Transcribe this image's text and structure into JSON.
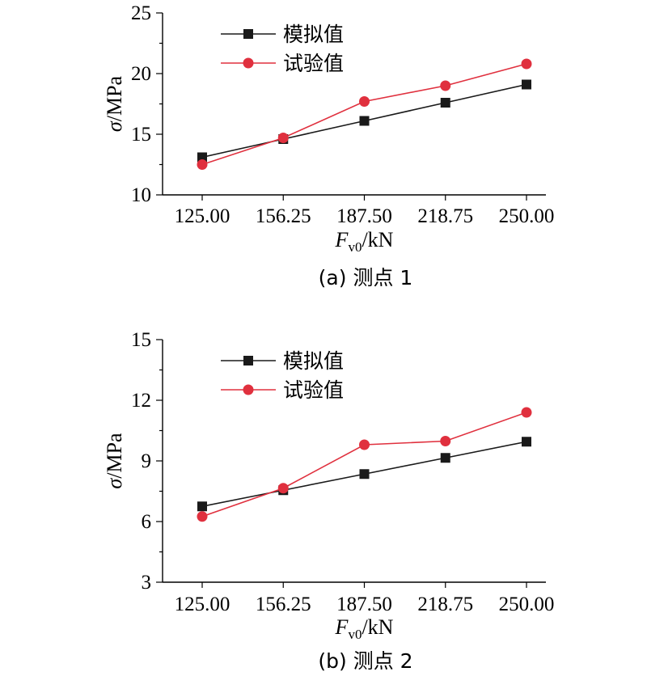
{
  "chart_data": [
    {
      "type": "line",
      "panel": "a",
      "caption": "(a) 测点 1",
      "xlabel_var": "F",
      "xlabel_sub": "v0",
      "xlabel_unit": "/kN",
      "ylabel_var": "σ",
      "ylabel_unit": "/MPa",
      "categories": [
        "125.00",
        "156.25",
        "187.50",
        "218.75",
        "250.00"
      ],
      "x": [
        125.0,
        156.25,
        187.5,
        218.75,
        250.0
      ],
      "ylim": [
        10,
        25
      ],
      "yticks": [
        "10",
        "15",
        "20",
        "25"
      ],
      "ytick_values": [
        10,
        15,
        20,
        25
      ],
      "legend_position": "top-left",
      "series": [
        {
          "name": "模拟值",
          "color": "#1a1a1a",
          "marker": "square",
          "values": [
            13.1,
            14.6,
            16.1,
            17.6,
            19.1
          ]
        },
        {
          "name": "试验值",
          "color": "#e0303e",
          "marker": "circle",
          "values": [
            12.5,
            14.7,
            17.7,
            19.0,
            20.8
          ]
        }
      ]
    },
    {
      "type": "line",
      "panel": "b",
      "caption": "(b) 测点 2",
      "xlabel_var": "F",
      "xlabel_sub": "v0",
      "xlabel_unit": "/kN",
      "ylabel_var": "σ",
      "ylabel_unit": "/MPa",
      "categories": [
        "125.00",
        "156.25",
        "187.50",
        "218.75",
        "250.00"
      ],
      "x": [
        125.0,
        156.25,
        187.5,
        218.75,
        250.0
      ],
      "ylim": [
        3,
        15
      ],
      "yticks": [
        "3",
        "6",
        "9",
        "12",
        "15"
      ],
      "ytick_values": [
        3,
        6,
        9,
        12,
        15
      ],
      "legend_position": "top-left",
      "series": [
        {
          "name": "模拟值",
          "color": "#1a1a1a",
          "marker": "square",
          "values": [
            6.75,
            7.55,
            8.35,
            9.15,
            9.95
          ]
        },
        {
          "name": "试验值",
          "color": "#e0303e",
          "marker": "circle",
          "values": [
            6.25,
            7.65,
            9.8,
            9.98,
            11.4
          ]
        }
      ]
    }
  ]
}
